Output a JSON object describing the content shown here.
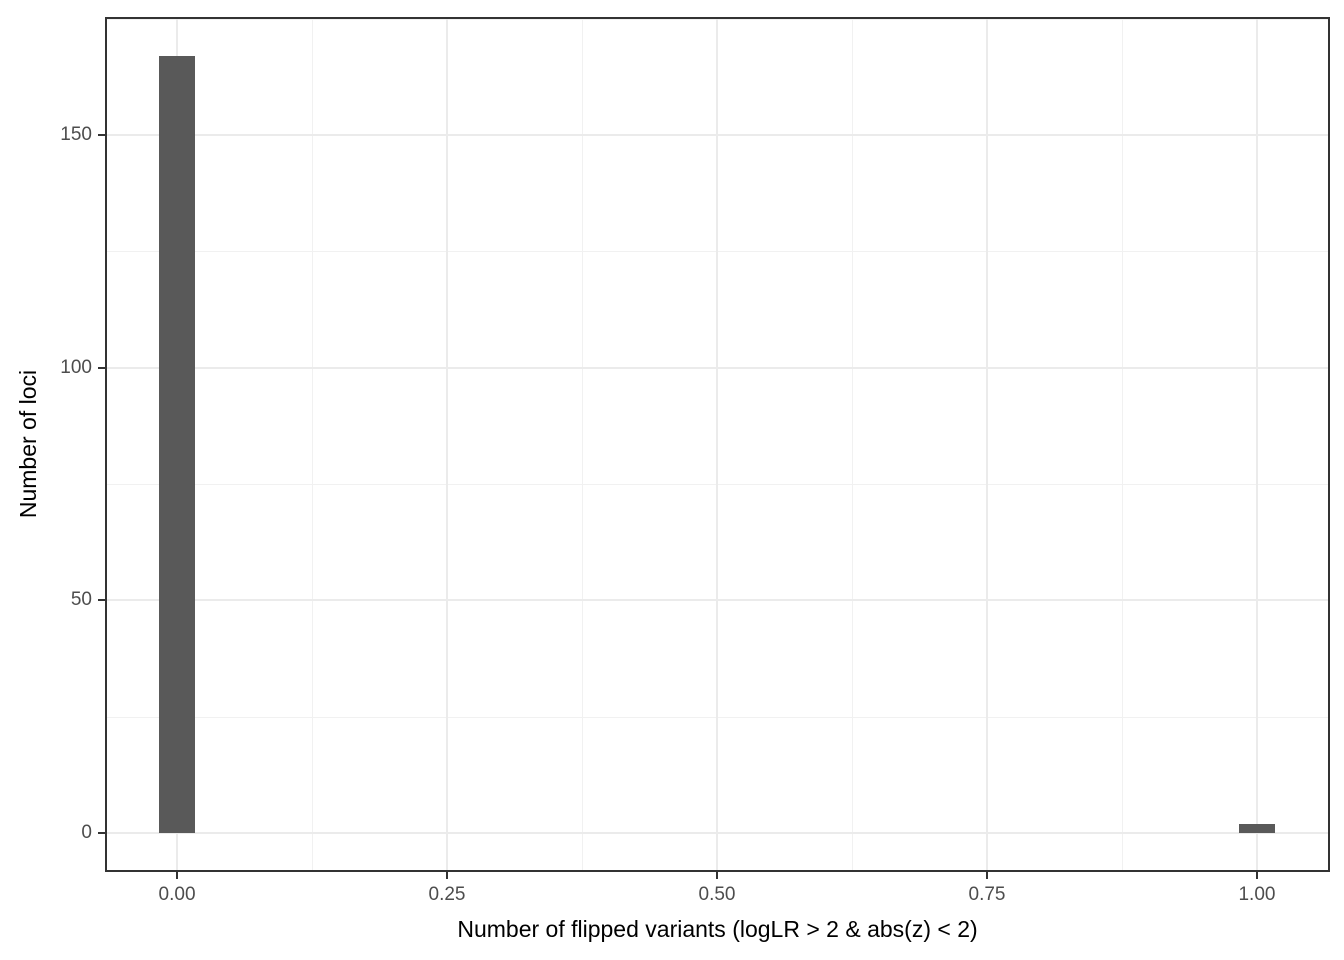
{
  "chart_data": {
    "type": "bar",
    "subtype": "histogram",
    "title": "",
    "xlabel": "Number of flipped variants (logLR > 2 & abs(z) < 2)",
    "ylabel": "Number of loci",
    "bars": [
      {
        "x": 0.0,
        "count": 167
      },
      {
        "x": 1.0,
        "count": 2
      }
    ],
    "bin_width": 0.0333,
    "x_ticks": [
      0,
      0.25,
      0.5,
      0.75,
      1.0
    ],
    "x_tick_labels": [
      "0.00",
      "0.25",
      "0.50",
      "0.75",
      "1.00"
    ],
    "y_ticks": [
      0,
      50,
      100,
      150
    ],
    "y_tick_labels": [
      "0",
      "50",
      "100",
      "150"
    ],
    "xlim": [
      -0.0667,
      1.0676
    ],
    "ylim": [
      -8.35,
      175.35
    ],
    "grid": "major and minor, light gray on white",
    "legend": false,
    "colors": {
      "bar_fill": "#595959",
      "grid_major": "#ebebeb",
      "grid_minor": "#f1f1f1",
      "panel_border": "#333333",
      "tick_mark": "#333333",
      "tick_label": "#4d4d4d",
      "axis_title": "#000000",
      "background": "#ffffff"
    }
  }
}
